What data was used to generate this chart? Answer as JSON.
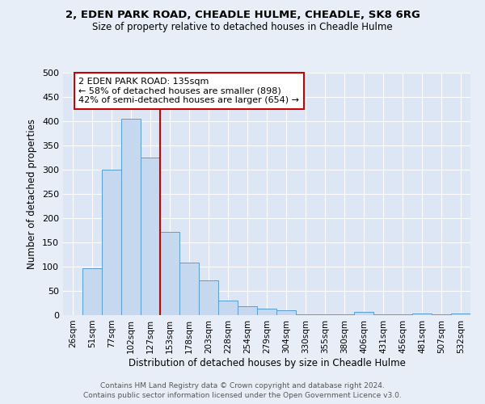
{
  "title1": "2, EDEN PARK ROAD, CHEADLE HULME, CHEADLE, SK8 6RG",
  "title2": "Size of property relative to detached houses in Cheadle Hulme",
  "xlabel": "Distribution of detached houses by size in Cheadle Hulme",
  "ylabel": "Number of detached properties",
  "bar_labels": [
    "26sqm",
    "51sqm",
    "77sqm",
    "102sqm",
    "127sqm",
    "153sqm",
    "178sqm",
    "203sqm",
    "228sqm",
    "254sqm",
    "279sqm",
    "304sqm",
    "330sqm",
    "355sqm",
    "380sqm",
    "406sqm",
    "431sqm",
    "456sqm",
    "481sqm",
    "507sqm",
    "532sqm"
  ],
  "bar_values": [
    0,
    97,
    300,
    405,
    325,
    172,
    109,
    71,
    30,
    18,
    14,
    10,
    1,
    1,
    1,
    7,
    1,
    1,
    4,
    1,
    3
  ],
  "bar_color": "#c5d8f0",
  "bar_edge_color": "#5b9bd5",
  "vline_color": "#cc0000",
  "vline_x": 4.5,
  "annotation_line1": "2 EDEN PARK ROAD: 135sqm",
  "annotation_line2": "← 58% of detached houses are smaller (898)",
  "annotation_line3": "42% of semi-detached houses are larger (654) →",
  "annotation_box_color": "#cc0000",
  "ylim": [
    0,
    500
  ],
  "yticks": [
    0,
    50,
    100,
    150,
    200,
    250,
    300,
    350,
    400,
    450,
    500
  ],
  "footer1": "Contains HM Land Registry data © Crown copyright and database right 2024.",
  "footer2": "Contains public sector information licensed under the Open Government Licence v3.0.",
  "bg_color": "#e8eef7",
  "plot_bg_color": "#dce6f5"
}
